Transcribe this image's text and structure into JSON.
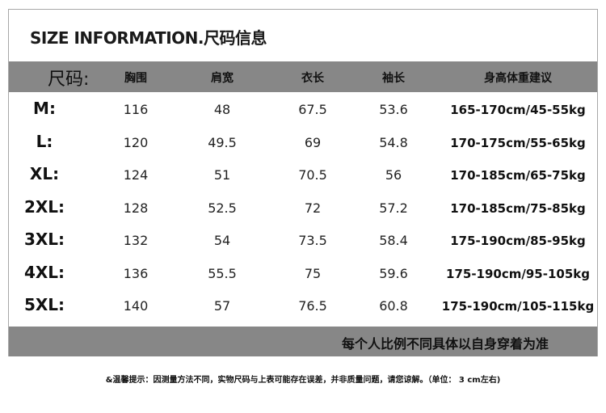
{
  "title": "SIZE INFORMATION.尺码信息",
  "header": [
    "尺码:",
    "胸围",
    "肩宽",
    "衣长",
    "袖长",
    "身高体重建议"
  ],
  "rows": [
    [
      "M:",
      "116",
      "48",
      "67.5",
      "53.6",
      "165-170cm/45-55kg"
    ],
    [
      "L:",
      "120",
      "49.5",
      "69",
      "54.8",
      "170-175cm/55-65kg"
    ],
    [
      "XL:",
      "124",
      "51",
      "70.5",
      "56",
      "170-185cm/65-75kg"
    ],
    [
      "2XL:",
      "128",
      "52.5",
      "72",
      "57.2",
      "170-185cm/75-85kg"
    ],
    [
      "3XL:",
      "132",
      "54",
      "73.5",
      "58.4",
      "175-190cm/85-95kg"
    ],
    [
      "4XL:",
      "136",
      "55.5",
      "75",
      "59.6",
      "175-190cm/95-105kg"
    ],
    [
      "5XL:",
      "140",
      "57",
      "76.5",
      "60.8",
      "175-190cm/105-115kg"
    ]
  ],
  "footer_note": "每个人比例不同具体以自身穿着为准",
  "tip": "&温馨提示：因测量方法不同，实物尺码与上表可能存在误差，并非质量问题，请您谅解。（单位： 3 cm左右)",
  "colors": {
    "header_bg": "#878787",
    "border": "#a8a8a8"
  }
}
